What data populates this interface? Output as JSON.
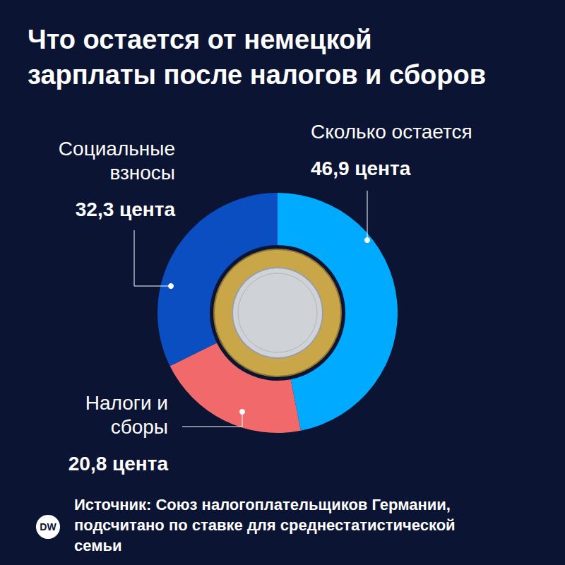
{
  "chart_data": {
    "type": "pie",
    "title": "Что остается от немецкой зарплаты после налогов и сборов",
    "categories": [
      "Сколько остается",
      "Налоги и сборы",
      "Социальные взносы"
    ],
    "values": [
      46.9,
      20.8,
      32.3
    ],
    "value_labels": [
      "46,9 цента",
      "20,8 цента",
      "32,3 цента"
    ],
    "colors": [
      "#00aaff",
      "#f06a6b",
      "#0a4ec2"
    ],
    "data_labels": true,
    "source": "Источник: Союз налогоплательщиков Германии, подсчитано по ставке для среднестатистической семьи",
    "logo": "DW"
  }
}
